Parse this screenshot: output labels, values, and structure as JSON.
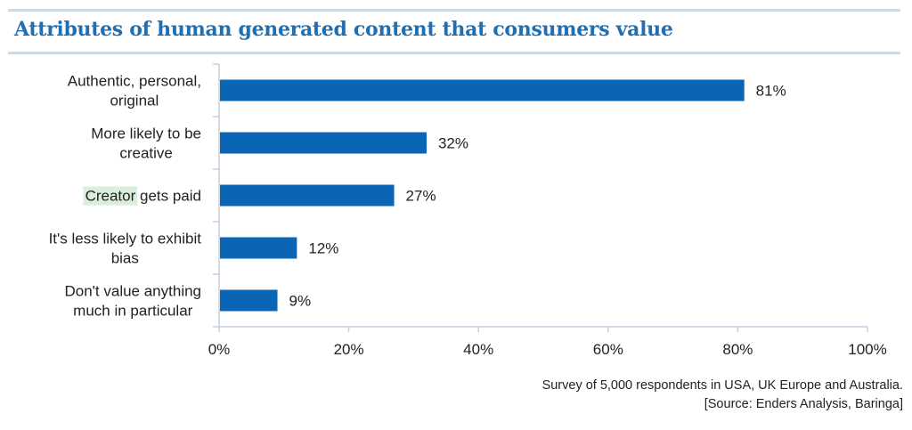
{
  "chart_data": {
    "type": "bar",
    "orientation": "horizontal",
    "title": "Attributes of human generated content that consumers value",
    "categories": [
      [
        "Authentic, personal,",
        "original"
      ],
      [
        "More likely to be",
        "creative"
      ],
      [
        "Creator gets paid"
      ],
      [
        "It's less likely to exhibit",
        "bias"
      ],
      [
        "Don't value anything",
        "much in particular"
      ]
    ],
    "values": [
      81,
      32,
      27,
      12,
      9
    ],
    "value_labels": [
      "81%",
      "32%",
      "27%",
      "12%",
      "9%"
    ],
    "xlim": [
      0,
      100
    ],
    "xticks": [
      0,
      20,
      40,
      60,
      80,
      100
    ],
    "xtick_labels": [
      "0%",
      "20%",
      "40%",
      "60%",
      "80%",
      "100%"
    ],
    "xlabel": "",
    "ylabel": "",
    "grid": false,
    "bar_color": "#0a66b5",
    "highlight": {
      "category_index": 2,
      "text": "Creator",
      "color": "#d9eedd"
    }
  },
  "footnote": {
    "line1": "Survey of 5,000 respondents in USA, UK Europe and Australia.",
    "line2": "[Source: Enders Analysis, Baringa]"
  },
  "colors": {
    "title": "#1f6fb4",
    "rule": "#cfd8e6",
    "axis": "#c5cfe0"
  }
}
